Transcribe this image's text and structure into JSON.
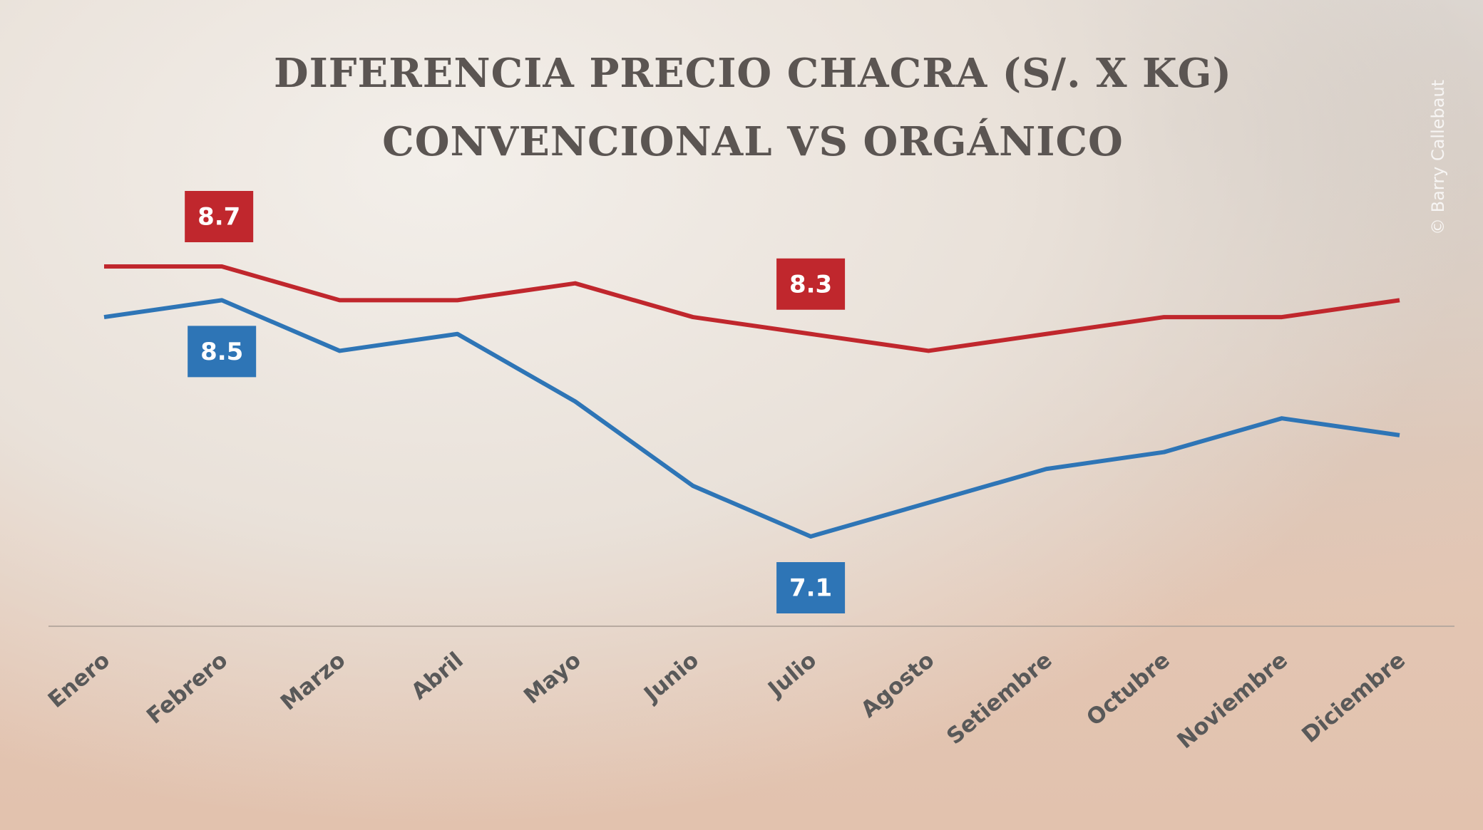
{
  "chart_data": {
    "type": "line",
    "title": [
      "DIFERENCIA PRECIO CHACRA (S/. X KG)",
      "CONVENCIONAL VS ORGÁNICO"
    ],
    "credit": "© Barry Callebaut",
    "categories": [
      "Enero",
      "Febrero",
      "Marzo",
      "Abril",
      "Mayo",
      "Junio",
      "Julio",
      "Agosto",
      "Setiembre",
      "Octubre",
      "Noviembre",
      "Diciembre"
    ],
    "series": [
      {
        "color": "#c0272d",
        "values": [
          8.7,
          8.7,
          8.5,
          8.5,
          8.6,
          8.4,
          8.3,
          8.2,
          8.3,
          8.4,
          8.4,
          8.5
        ],
        "value_labels": [
          null,
          "8.7",
          null,
          null,
          null,
          null,
          "8.3",
          null,
          null,
          null,
          null,
          null
        ]
      },
      {
        "color": "#2e75b6",
        "values": [
          8.4,
          8.5,
          8.2,
          8.3,
          7.9,
          7.4,
          7.1,
          7.3,
          7.5,
          7.6,
          7.8,
          7.7
        ],
        "value_labels": [
          null,
          "8.5",
          null,
          null,
          null,
          null,
          "7.1",
          null,
          null,
          null,
          null,
          null
        ]
      }
    ]
  }
}
